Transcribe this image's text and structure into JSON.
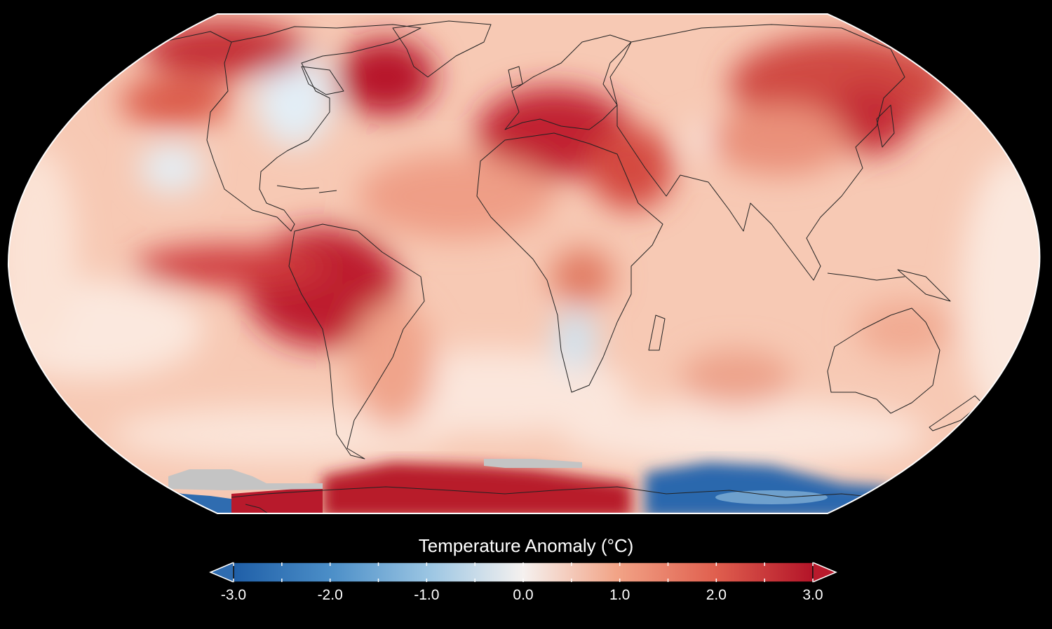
{
  "map": {
    "projection": "Robinson",
    "basemap_color": "#f7c7b0",
    "coastline_color": "#222222",
    "no_data_color": "#c4c4c4",
    "regions": [
      {
        "name": "North Atlantic / Labrador",
        "anomaly": 3.0
      },
      {
        "name": "Mediterranean / North Africa",
        "anomaly": 3.0
      },
      {
        "name": "Amazon / equatorial Pacific",
        "anomaly": 3.0
      },
      {
        "name": "Antarctic Peninsula / West Antarctica",
        "anomaly": 3.0
      },
      {
        "name": "East Antarctica",
        "anomaly": -2.5
      },
      {
        "name": "Western Canada / Hudson Bay",
        "anomaly": -0.3
      },
      {
        "name": "Southern Africa",
        "anomaly": -0.3
      }
    ]
  },
  "colorbar": {
    "title": "Temperature Anomaly (°C)",
    "tick_labels": [
      "-3.0",
      "-2.0",
      "-1.0",
      "0.0",
      "1.0",
      "2.0",
      "3.0"
    ],
    "ticks": [
      -3,
      -2,
      -1,
      0,
      1,
      2,
      3
    ],
    "range": [
      -3,
      3
    ],
    "colors": [
      "#1f5fa8",
      "#4c8fc8",
      "#9cc6e3",
      "#f5f1ef",
      "#f2a487",
      "#e0604f",
      "#b31428"
    ],
    "extend": "both"
  }
}
